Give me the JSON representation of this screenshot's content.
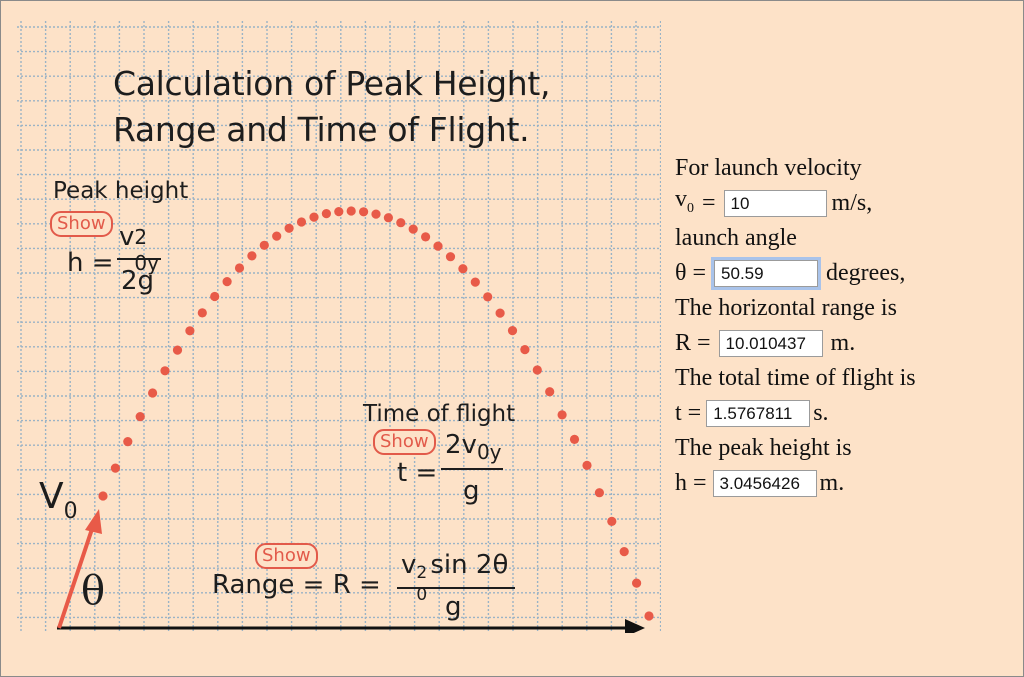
{
  "figure": {
    "title_line1": "Calculation of Peak Height,",
    "title_line2": "Range and Time of Flight.",
    "peak_label": "Peak height",
    "peak_show": "Show",
    "peak_formula_lhs": "h =",
    "peak_formula_num": "v",
    "peak_formula_num_sub": "0y",
    "peak_formula_num_sup": "2",
    "peak_formula_den": "2g",
    "time_label": "Time of flight",
    "time_show": "Show",
    "time_formula_lhs": "t =",
    "time_formula_num": "2v",
    "time_formula_num_sub": "0y",
    "time_formula_den": "g",
    "range_show": "Show",
    "range_formula_lhs": "Range = R  =",
    "range_formula_num": "v",
    "range_formula_num_sub": "0",
    "range_formula_num_sup": "2",
    "range_formula_num_rest": "sin 2θ",
    "range_formula_den": "g",
    "v0_label": "V",
    "v0_sub": "0",
    "theta_label": "θ",
    "colors": {
      "accent": "#e85a48",
      "grid": "#9ab3c6",
      "background": "#fde2c8"
    }
  },
  "calculator": {
    "velocity_intro": "For launch velocity",
    "velocity_lhs": "v",
    "velocity_lhs_sub": "0",
    "velocity_eq": "=",
    "velocity_value": "10",
    "velocity_unit": "m/s,",
    "angle_intro": "launch angle",
    "angle_lhs": "θ =",
    "angle_value": "50.59",
    "angle_unit": "degrees,",
    "range_intro": "The horizontal range is",
    "range_lhs": "R =",
    "range_value": "10.010437",
    "range_unit": "m.",
    "time_intro": "The total time of flight is",
    "time_lhs": "t =",
    "time_value": "1.5767811",
    "time_unit": "s.",
    "height_intro": "The peak height is",
    "height_lhs": "h =",
    "height_value": "3.0456426",
    "height_unit": "m."
  }
}
